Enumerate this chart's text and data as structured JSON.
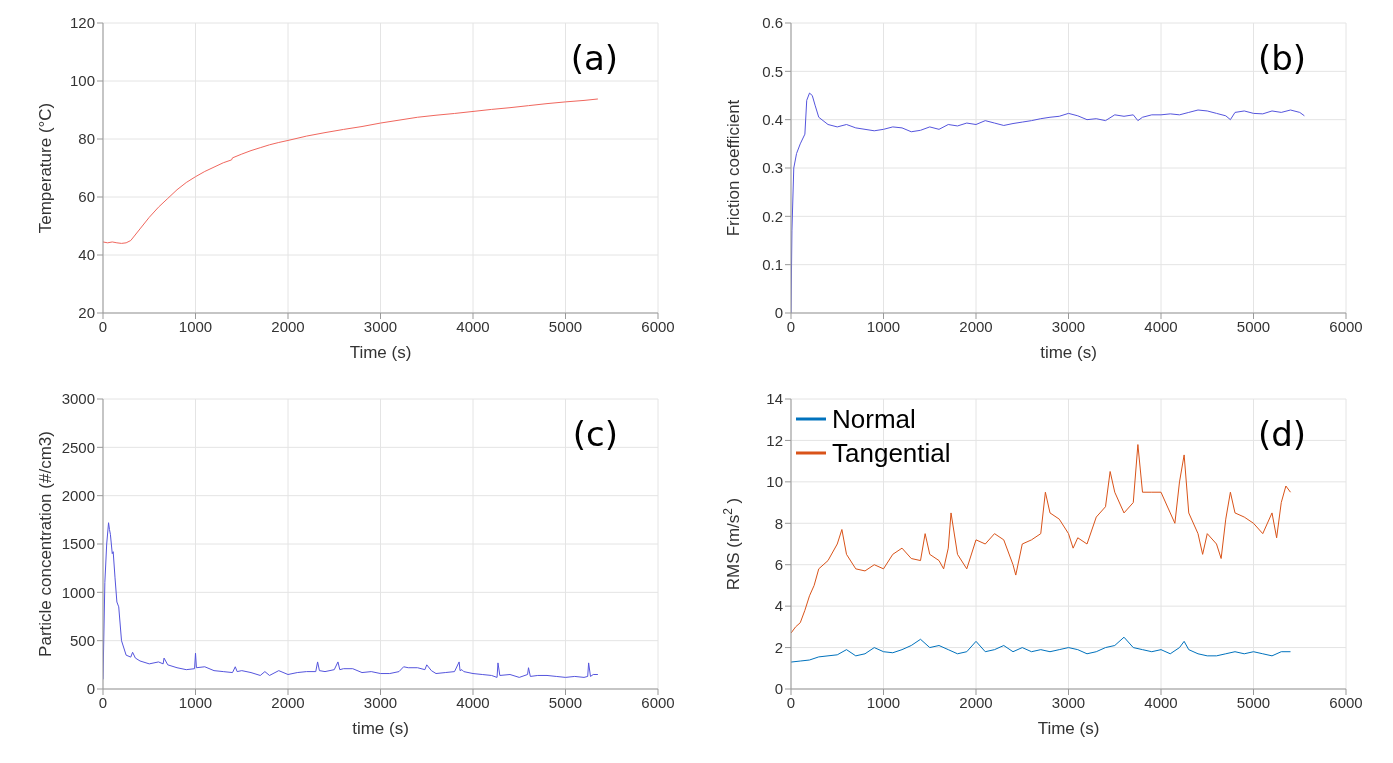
{
  "chart_data": [
    {
      "type": "line",
      "xlabel": "Time (s)",
      "ylabel": "Temperature (°C)",
      "annotations": [
        "(a)"
      ],
      "xlim": [
        0,
        6000
      ],
      "xticks": [
        0,
        1000,
        2000,
        3000,
        4000,
        5000,
        6000
      ],
      "ylim": [
        20,
        120
      ],
      "yticks": [
        20,
        40,
        60,
        80,
        100,
        120
      ],
      "grid": true,
      "marker": "none",
      "series": [
        {
          "color": "#f0675e",
          "x": [
            0,
            50,
            100,
            150,
            200,
            250,
            300,
            400,
            500,
            600,
            700,
            800,
            900,
            1000,
            1100,
            1200,
            1300,
            1390,
            1400,
            1500,
            1600,
            1700,
            1800,
            1900,
            2000,
            2200,
            2400,
            2600,
            2800,
            3000,
            3200,
            3400,
            3600,
            3800,
            4000,
            4200,
            4400,
            4600,
            4800,
            5000,
            5200,
            5350
          ],
          "values": [
            44.5,
            44.2,
            44.5,
            44.2,
            44,
            44.2,
            45,
            49,
            53,
            56.5,
            59.5,
            62.5,
            65,
            67,
            68.8,
            70.3,
            71.8,
            72.8,
            73.5,
            74.8,
            76,
            77,
            78,
            78.8,
            79.5,
            81,
            82.2,
            83.3,
            84.3,
            85.5,
            86.5,
            87.5,
            88.2,
            88.8,
            89.5,
            90.2,
            90.8,
            91.5,
            92.2,
            92.8,
            93.3,
            93.8
          ]
        }
      ]
    },
    {
      "type": "line",
      "xlabel": "time (s)",
      "ylabel": "Friction coefficient",
      "annotations": [
        "(b)"
      ],
      "xlim": [
        0,
        6000
      ],
      "xticks": [
        0,
        1000,
        2000,
        3000,
        4000,
        5000,
        6000
      ],
      "ylim": [
        0,
        0.6
      ],
      "yticks": [
        0,
        0.1,
        0.2,
        0.3,
        0.4,
        0.5,
        0.6
      ],
      "grid": true,
      "marker": "none",
      "series": [
        {
          "color": "#5555dd",
          "x": [
            0,
            10,
            30,
            60,
            100,
            150,
            170,
            200,
            230,
            260,
            300,
            400,
            500,
            600,
            700,
            800,
            900,
            1000,
            1100,
            1200,
            1300,
            1400,
            1500,
            1600,
            1700,
            1800,
            1900,
            2000,
            2100,
            2200,
            2300,
            2400,
            2500,
            2600,
            2700,
            2800,
            2900,
            3000,
            3100,
            3200,
            3300,
            3400,
            3500,
            3600,
            3700,
            3750,
            3800,
            3900,
            4000,
            4100,
            4200,
            4300,
            4400,
            4500,
            4600,
            4700,
            4750,
            4800,
            4900,
            5000,
            5100,
            5200,
            5300,
            5400,
            5500,
            5550
          ],
          "values": [
            0,
            0.17,
            0.3,
            0.33,
            0.35,
            0.37,
            0.44,
            0.455,
            0.45,
            0.43,
            0.405,
            0.39,
            0.385,
            0.39,
            0.383,
            0.38,
            0.377,
            0.38,
            0.385,
            0.383,
            0.375,
            0.378,
            0.385,
            0.38,
            0.39,
            0.387,
            0.393,
            0.39,
            0.398,
            0.393,
            0.388,
            0.392,
            0.395,
            0.398,
            0.402,
            0.405,
            0.407,
            0.413,
            0.408,
            0.4,
            0.402,
            0.398,
            0.41,
            0.407,
            0.41,
            0.398,
            0.405,
            0.41,
            0.41,
            0.412,
            0.41,
            0.415,
            0.42,
            0.418,
            0.413,
            0.408,
            0.4,
            0.415,
            0.418,
            0.413,
            0.412,
            0.418,
            0.415,
            0.42,
            0.415,
            0.408
          ]
        }
      ]
    },
    {
      "type": "line",
      "xlabel": "time (s)",
      "ylabel": "Particle concentration (#/cm3)",
      "annotations": [
        "(c)"
      ],
      "xlim": [
        0,
        6000
      ],
      "xticks": [
        0,
        1000,
        2000,
        3000,
        4000,
        5000,
        6000
      ],
      "ylim": [
        0,
        3000
      ],
      "yticks": [
        0,
        500,
        1000,
        1500,
        2000,
        2500,
        3000
      ],
      "grid": true,
      "marker": "none",
      "series": [
        {
          "color": "#5555dd",
          "x": [
            0,
            20,
            40,
            60,
            70,
            80,
            100,
            110,
            130,
            150,
            170,
            200,
            250,
            300,
            320,
            350,
            400,
            500,
            600,
            650,
            660,
            700,
            800,
            900,
            990,
            1000,
            1010,
            1100,
            1200,
            1300,
            1400,
            1430,
            1450,
            1500,
            1600,
            1700,
            1750,
            1800,
            1900,
            2000,
            2100,
            2200,
            2300,
            2320,
            2340,
            2400,
            2500,
            2540,
            2560,
            2600,
            2700,
            2800,
            2900,
            3000,
            3100,
            3200,
            3250,
            3300,
            3400,
            3480,
            3500,
            3550,
            3600,
            3700,
            3800,
            3850,
            3860,
            3880,
            3900,
            4000,
            4100,
            4200,
            4260,
            4270,
            4290,
            4400,
            4500,
            4590,
            4600,
            4620,
            4700,
            4800,
            4900,
            5000,
            5100,
            5200,
            5240,
            5250,
            5270,
            5300,
            5350
          ],
          "values": [
            100,
            1100,
            1500,
            1720,
            1650,
            1600,
            1400,
            1420,
            1150,
            900,
            850,
            500,
            350,
            330,
            380,
            320,
            290,
            260,
            280,
            260,
            320,
            250,
            220,
            200,
            210,
            370,
            220,
            230,
            190,
            180,
            170,
            230,
            180,
            190,
            170,
            140,
            180,
            140,
            190,
            150,
            170,
            180,
            180,
            280,
            190,
            180,
            200,
            280,
            200,
            210,
            210,
            170,
            180,
            160,
            160,
            180,
            230,
            220,
            220,
            200,
            250,
            190,
            160,
            170,
            180,
            280,
            190,
            200,
            180,
            160,
            150,
            140,
            120,
            270,
            140,
            150,
            120,
            150,
            220,
            130,
            140,
            140,
            130,
            120,
            130,
            120,
            130,
            270,
            130,
            150,
            150
          ]
        }
      ]
    },
    {
      "type": "line",
      "xlabel": "Time (s)",
      "ylabel": "RMS (m/s$^{2}$)",
      "annotations": [
        "(d)"
      ],
      "xlim": [
        0,
        6000
      ],
      "xticks": [
        0,
        1000,
        2000,
        3000,
        4000,
        5000,
        6000
      ],
      "ylim": [
        0,
        14
      ],
      "yticks": [
        0,
        2,
        4,
        6,
        8,
        10,
        12,
        14
      ],
      "grid": true,
      "marker": "none",
      "legend": "top left",
      "series": [
        {
          "name": "Normal",
          "color": "#0072bd",
          "x": [
            0,
            100,
            200,
            300,
            400,
            500,
            600,
            700,
            800,
            900,
            1000,
            1100,
            1200,
            1300,
            1400,
            1500,
            1600,
            1700,
            1800,
            1900,
            2000,
            2100,
            2200,
            2300,
            2400,
            2500,
            2600,
            2700,
            2800,
            2900,
            3000,
            3100,
            3200,
            3300,
            3400,
            3500,
            3600,
            3700,
            3800,
            3900,
            4000,
            4100,
            4200,
            4250,
            4300,
            4400,
            4500,
            4600,
            4700,
            4800,
            4900,
            5000,
            5100,
            5200,
            5300,
            5400
          ],
          "values": [
            1.3,
            1.35,
            1.4,
            1.55,
            1.6,
            1.65,
            1.9,
            1.6,
            1.7,
            2.0,
            1.8,
            1.75,
            1.9,
            2.1,
            2.4,
            2.0,
            2.1,
            1.9,
            1.7,
            1.8,
            2.3,
            1.8,
            1.9,
            2.1,
            1.8,
            2.0,
            1.8,
            1.9,
            1.8,
            1.9,
            2.0,
            1.9,
            1.7,
            1.8,
            2.0,
            2.1,
            2.5,
            2.0,
            1.9,
            1.8,
            1.9,
            1.7,
            2.0,
            2.3,
            1.9,
            1.7,
            1.6,
            1.6,
            1.7,
            1.8,
            1.7,
            1.8,
            1.7,
            1.6,
            1.8,
            1.8
          ]
        },
        {
          "name": "Tangential",
          "color": "#d95319",
          "x": [
            0,
            50,
            100,
            150,
            200,
            250,
            300,
            400,
            500,
            550,
            600,
            700,
            800,
            900,
            1000,
            1100,
            1200,
            1300,
            1400,
            1450,
            1500,
            1600,
            1650,
            1700,
            1730,
            1800,
            1900,
            2000,
            2100,
            2200,
            2300,
            2400,
            2430,
            2500,
            2600,
            2700,
            2750,
            2800,
            2900,
            3000,
            3050,
            3100,
            3200,
            3300,
            3400,
            3450,
            3500,
            3600,
            3700,
            3750,
            3800,
            3900,
            4000,
            4100,
            4150,
            4200,
            4250,
            4300,
            4400,
            4450,
            4500,
            4600,
            4650,
            4700,
            4750,
            4800,
            4900,
            5000,
            5100,
            5200,
            5250,
            5300,
            5350,
            5400
          ],
          "values": [
            2.7,
            3.0,
            3.2,
            3.8,
            4.5,
            5.0,
            5.8,
            6.2,
            7.0,
            7.7,
            6.5,
            5.8,
            5.7,
            6.0,
            5.8,
            6.5,
            6.8,
            6.3,
            6.2,
            7.5,
            6.5,
            6.2,
            5.8,
            6.8,
            8.5,
            6.5,
            5.8,
            7.2,
            7.0,
            7.5,
            7.2,
            6.0,
            5.5,
            7.0,
            7.2,
            7.5,
            9.5,
            8.5,
            8.2,
            7.5,
            6.8,
            7.3,
            7.0,
            8.3,
            8.8,
            10.5,
            9.5,
            8.5,
            9.0,
            11.8,
            9.5,
            9.5,
            9.5,
            8.5,
            8.0,
            10.0,
            11.3,
            8.5,
            7.5,
            6.5,
            7.5,
            7.0,
            6.3,
            8.2,
            9.5,
            8.5,
            8.3,
            8.0,
            7.5,
            8.5,
            7.3,
            9.0,
            9.8,
            9.5
          ]
        }
      ]
    }
  ]
}
